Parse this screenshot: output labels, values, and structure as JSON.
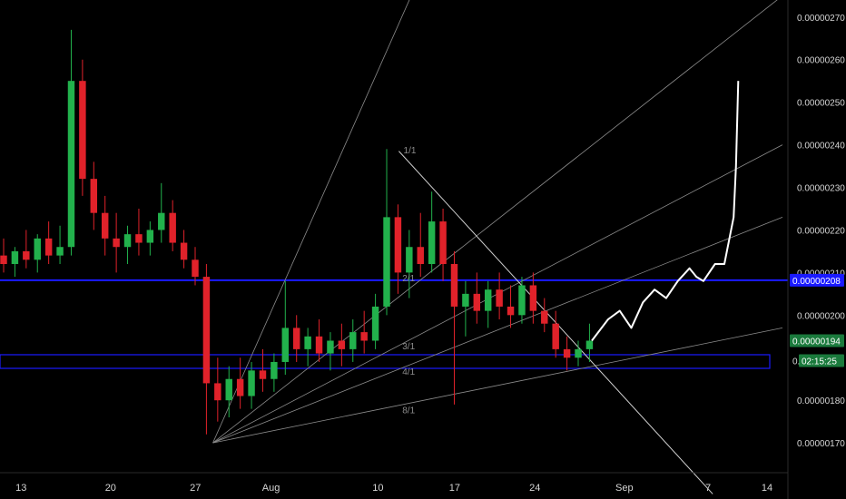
{
  "chart_data": {
    "type": "candlestick",
    "price_axis": {
      "ticks": [
        "0.00000270",
        "0.00000260",
        "0.00000250",
        "0.00000240",
        "0.00000230",
        "0.00000220",
        "0.00000210",
        "0.00000200",
        "0.00000180",
        "0.00000170"
      ],
      "range": [
        1.63e-06,
        2.74e-06
      ]
    },
    "time_axis": {
      "ticks": [
        "13",
        "20",
        "27",
        "Aug",
        "10",
        "17",
        "24",
        "Sep",
        "7",
        "14"
      ],
      "range": [
        0,
        67
      ]
    },
    "price_badges": [
      {
        "label": "0.00000208",
        "kind": "horizontal-level",
        "bg": "#1a1aff",
        "fg": "#ffffff"
      },
      {
        "label": "0.00000194",
        "kind": "last-price",
        "bg": "#1a7a3c",
        "fg": "#ffffff"
      },
      {
        "label": "02:15:25",
        "kind": "countdown",
        "bg": "#1a7a3c",
        "fg": "#ffffff"
      },
      {
        "label": "0.",
        "kind": "truncated",
        "bg": "#000000",
        "fg": "#d6d6d6"
      }
    ],
    "fan_labels": [
      "1/1",
      "2/1",
      "3/1",
      "4/1",
      "8/1"
    ],
    "horizontal_levels": [
      {
        "price": 2.082e-06,
        "color": "#1a1aff"
      }
    ],
    "zones": [
      {
        "from": 1.875e-06,
        "to": 1.907e-06,
        "color": "#1a1aff",
        "x0": 0,
        "x1": 67
      }
    ],
    "fan": {
      "origin": {
        "x": 18,
        "price": 1.7e-06
      },
      "targets": [
        {
          "x": 44,
          "price": 3.3e-06
        },
        {
          "x": 67,
          "price": 2.75e-06
        },
        {
          "x": 67,
          "price": 2.4e-06
        },
        {
          "x": 67,
          "price": 2.23e-06
        },
        {
          "x": 67,
          "price": 1.97e-06
        }
      ],
      "color": "#8c8c8c"
    },
    "downtrend_line": {
      "from": {
        "x": 34,
        "price": 2.385e-06
      },
      "to": {
        "x": 61,
        "price": 1.58e-06
      },
      "color": "#d0d0d0"
    },
    "projection_path": {
      "color": "#ffffff",
      "points": [
        [
          50.6,
          1.94e-06
        ],
        [
          52,
          1.99e-06
        ],
        [
          53,
          2.01e-06
        ],
        [
          54,
          1.97e-06
        ],
        [
          55,
          2.03e-06
        ],
        [
          56,
          2.06e-06
        ],
        [
          57,
          2.04e-06
        ],
        [
          58,
          2.08e-06
        ],
        [
          59,
          2.11e-06
        ],
        [
          59.6,
          2.09e-06
        ],
        [
          60.2,
          2.08e-06
        ],
        [
          61.2,
          2.12e-06
        ],
        [
          62,
          2.12e-06
        ],
        [
          62.8,
          2.23e-06
        ],
        [
          63,
          2.35e-06
        ],
        [
          63.2,
          2.55e-06
        ]
      ]
    },
    "colors": {
      "up": "#22b14c",
      "down": "#e0222a",
      "wick_up": "#22b14c",
      "wick_down": "#e0222a"
    },
    "candles": [
      [
        2.14e-06,
        2.18e-06,
        2.1e-06,
        2.12e-06
      ],
      [
        2.12e-06,
        2.16e-06,
        2.09e-06,
        2.15e-06
      ],
      [
        2.15e-06,
        2.2e-06,
        2.11e-06,
        2.13e-06
      ],
      [
        2.13e-06,
        2.19e-06,
        2.1e-06,
        2.18e-06
      ],
      [
        2.18e-06,
        2.22e-06,
        2.12e-06,
        2.14e-06
      ],
      [
        2.14e-06,
        2.21e-06,
        2.12e-06,
        2.16e-06
      ],
      [
        2.16e-06,
        2.67e-06,
        2.14e-06,
        2.55e-06
      ],
      [
        2.55e-06,
        2.6e-06,
        2.28e-06,
        2.32e-06
      ],
      [
        2.32e-06,
        2.36e-06,
        2.2e-06,
        2.24e-06
      ],
      [
        2.24e-06,
        2.28e-06,
        2.14e-06,
        2.18e-06
      ],
      [
        2.18e-06,
        2.24e-06,
        2.1e-06,
        2.16e-06
      ],
      [
        2.16e-06,
        2.21e-06,
        2.12e-06,
        2.19e-06
      ],
      [
        2.19e-06,
        2.25e-06,
        2.14e-06,
        2.17e-06
      ],
      [
        2.17e-06,
        2.22e-06,
        2.14e-06,
        2.2e-06
      ],
      [
        2.2e-06,
        2.31e-06,
        2.17e-06,
        2.24e-06
      ],
      [
        2.24e-06,
        2.27e-06,
        2.15e-06,
        2.17e-06
      ],
      [
        2.17e-06,
        2.2e-06,
        2.11e-06,
        2.13e-06
      ],
      [
        2.13e-06,
        2.16e-06,
        2.07e-06,
        2.09e-06
      ],
      [
        2.09e-06,
        2.12e-06,
        1.72e-06,
        1.84e-06
      ],
      [
        1.84e-06,
        1.9e-06,
        1.75e-06,
        1.8e-06
      ],
      [
        1.8e-06,
        1.88e-06,
        1.76e-06,
        1.85e-06
      ],
      [
        1.85e-06,
        1.9e-06,
        1.78e-06,
        1.81e-06
      ],
      [
        1.81e-06,
        1.89e-06,
        1.78e-06,
        1.87e-06
      ],
      [
        1.87e-06,
        1.92e-06,
        1.82e-06,
        1.85e-06
      ],
      [
        1.85e-06,
        1.91e-06,
        1.82e-06,
        1.89e-06
      ],
      [
        1.89e-06,
        2.08e-06,
        1.86e-06,
        1.97e-06
      ],
      [
        1.97e-06,
        2e-06,
        1.89e-06,
        1.92e-06
      ],
      [
        1.92e-06,
        1.97e-06,
        1.88e-06,
        1.95e-06
      ],
      [
        1.95e-06,
        1.99e-06,
        1.89e-06,
        1.91e-06
      ],
      [
        1.91e-06,
        1.96e-06,
        1.87e-06,
        1.94e-06
      ],
      [
        1.94e-06,
        1.98e-06,
        1.88e-06,
        1.92e-06
      ],
      [
        1.92e-06,
        1.99e-06,
        1.89e-06,
        1.96e-06
      ],
      [
        1.96e-06,
        2.01e-06,
        1.91e-06,
        1.94e-06
      ],
      [
        1.94e-06,
        2.05e-06,
        1.92e-06,
        2.02e-06
      ],
      [
        2.02e-06,
        2.39e-06,
        2e-06,
        2.23e-06
      ],
      [
        2.23e-06,
        2.26e-06,
        2.05e-06,
        2.1e-06
      ],
      [
        2.1e-06,
        2.2e-06,
        2.04e-06,
        2.16e-06
      ],
      [
        2.16e-06,
        2.24e-06,
        2.09e-06,
        2.12e-06
      ],
      [
        2.12e-06,
        2.29e-06,
        2.1e-06,
        2.22e-06
      ],
      [
        2.22e-06,
        2.25e-06,
        2.08e-06,
        2.12e-06
      ],
      [
        2.12e-06,
        2.15e-06,
        1.79e-06,
        2.02e-06
      ],
      [
        2.02e-06,
        2.08e-06,
        1.95e-06,
        2.05e-06
      ],
      [
        2.05e-06,
        2.1e-06,
        1.98e-06,
        2.01e-06
      ],
      [
        2.01e-06,
        2.08e-06,
        1.97e-06,
        2.06e-06
      ],
      [
        2.06e-06,
        2.1e-06,
        1.99e-06,
        2.02e-06
      ],
      [
        2.02e-06,
        2.07e-06,
        1.97e-06,
        2e-06
      ],
      [
        2e-06,
        2.09e-06,
        1.98e-06,
        2.07e-06
      ],
      [
        2.07e-06,
        2.1e-06,
        1.98e-06,
        2.01e-06
      ],
      [
        2.01e-06,
        2.04e-06,
        1.96e-06,
        1.98e-06
      ],
      [
        1.98e-06,
        2.01e-06,
        1.9e-06,
        1.92e-06
      ],
      [
        1.92e-06,
        1.95e-06,
        1.87e-06,
        1.9e-06
      ],
      [
        1.9e-06,
        1.94e-06,
        1.88e-06,
        1.92e-06
      ],
      [
        1.92e-06,
        1.98e-06,
        1.89e-06,
        1.94e-06
      ]
    ]
  }
}
